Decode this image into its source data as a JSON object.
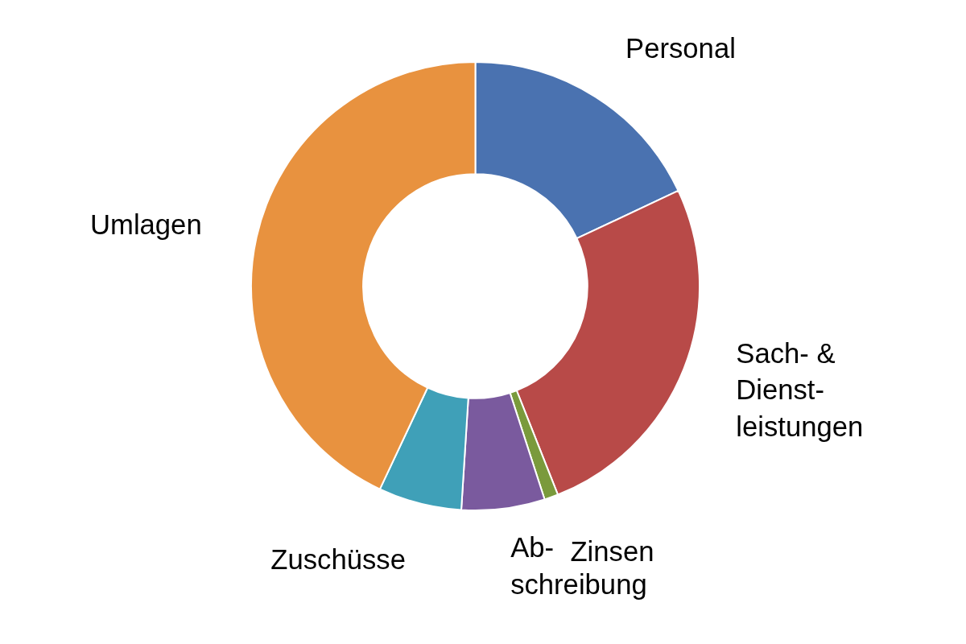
{
  "chart_data": {
    "type": "donut",
    "categories": [
      "Personal",
      "Sach- &\nDienst-\nleistungen",
      "Zinsen",
      "Ab-\nschreibung",
      "Zuschüsse",
      "Umlagen"
    ],
    "values": [
      18,
      26,
      1,
      6,
      6,
      43
    ],
    "colors": [
      "#4a72b0",
      "#b84a48",
      "#7a9a3c",
      "#7a5a9e",
      "#3fa0b8",
      "#e8923f"
    ]
  }
}
